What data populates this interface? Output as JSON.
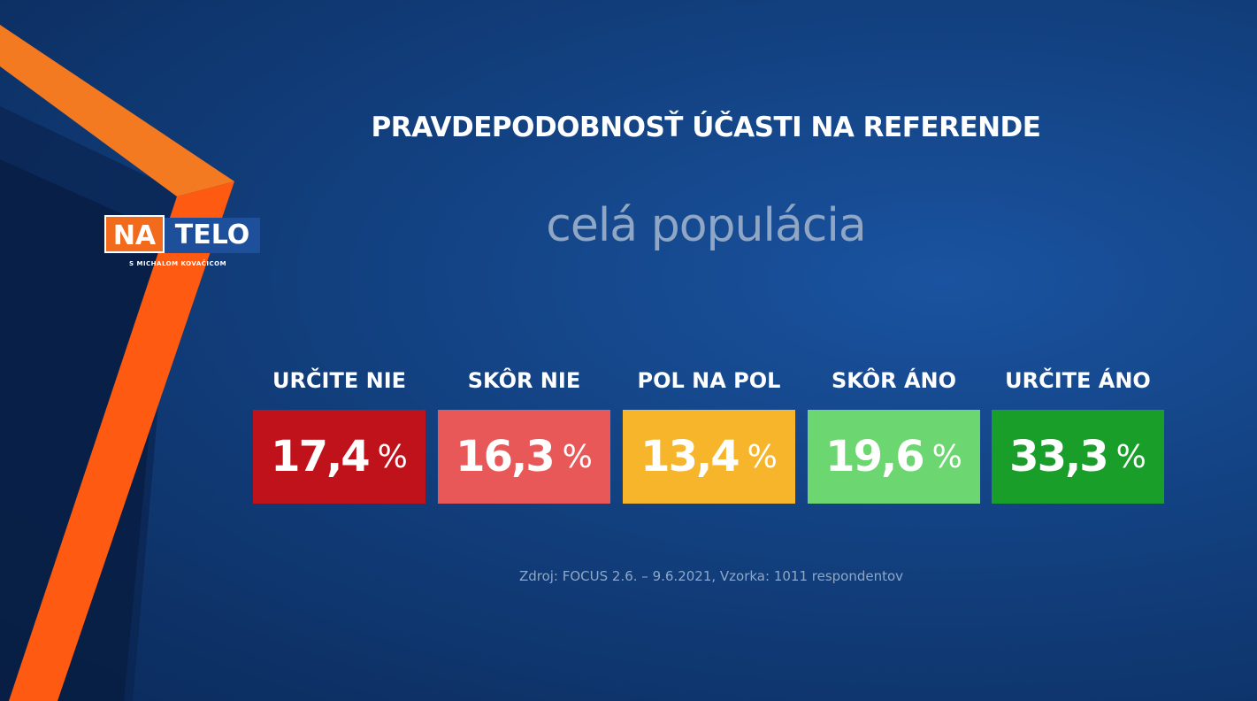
{
  "logo": {
    "left": "NA",
    "right": "TELO",
    "sub": "S MICHALOM KOVAČICOM"
  },
  "chart_data": {
    "type": "table",
    "title": "PRAVDEPODOBNOSŤ ÚČASTI NA REFERENDE",
    "subtitle": "celá populácia",
    "categories": [
      "URČITE NIE",
      "SKÔR NIE",
      "POL NA POL",
      "SKÔR ÁNO",
      "URČITE ÁNO"
    ],
    "values": [
      17.4,
      16.3,
      13.4,
      19.6,
      33.3
    ],
    "labels": [
      "17,4",
      "16,3",
      "13,4",
      "19,6",
      "33,3"
    ],
    "unit": "%",
    "colors": [
      "#c0121a",
      "#e95858",
      "#f6b52a",
      "#6cd670",
      "#1a9e2a"
    ]
  },
  "source": "Zdroj: FOCUS 2.6. – 9.6.2021, Vzorka: 1011 respondentov"
}
